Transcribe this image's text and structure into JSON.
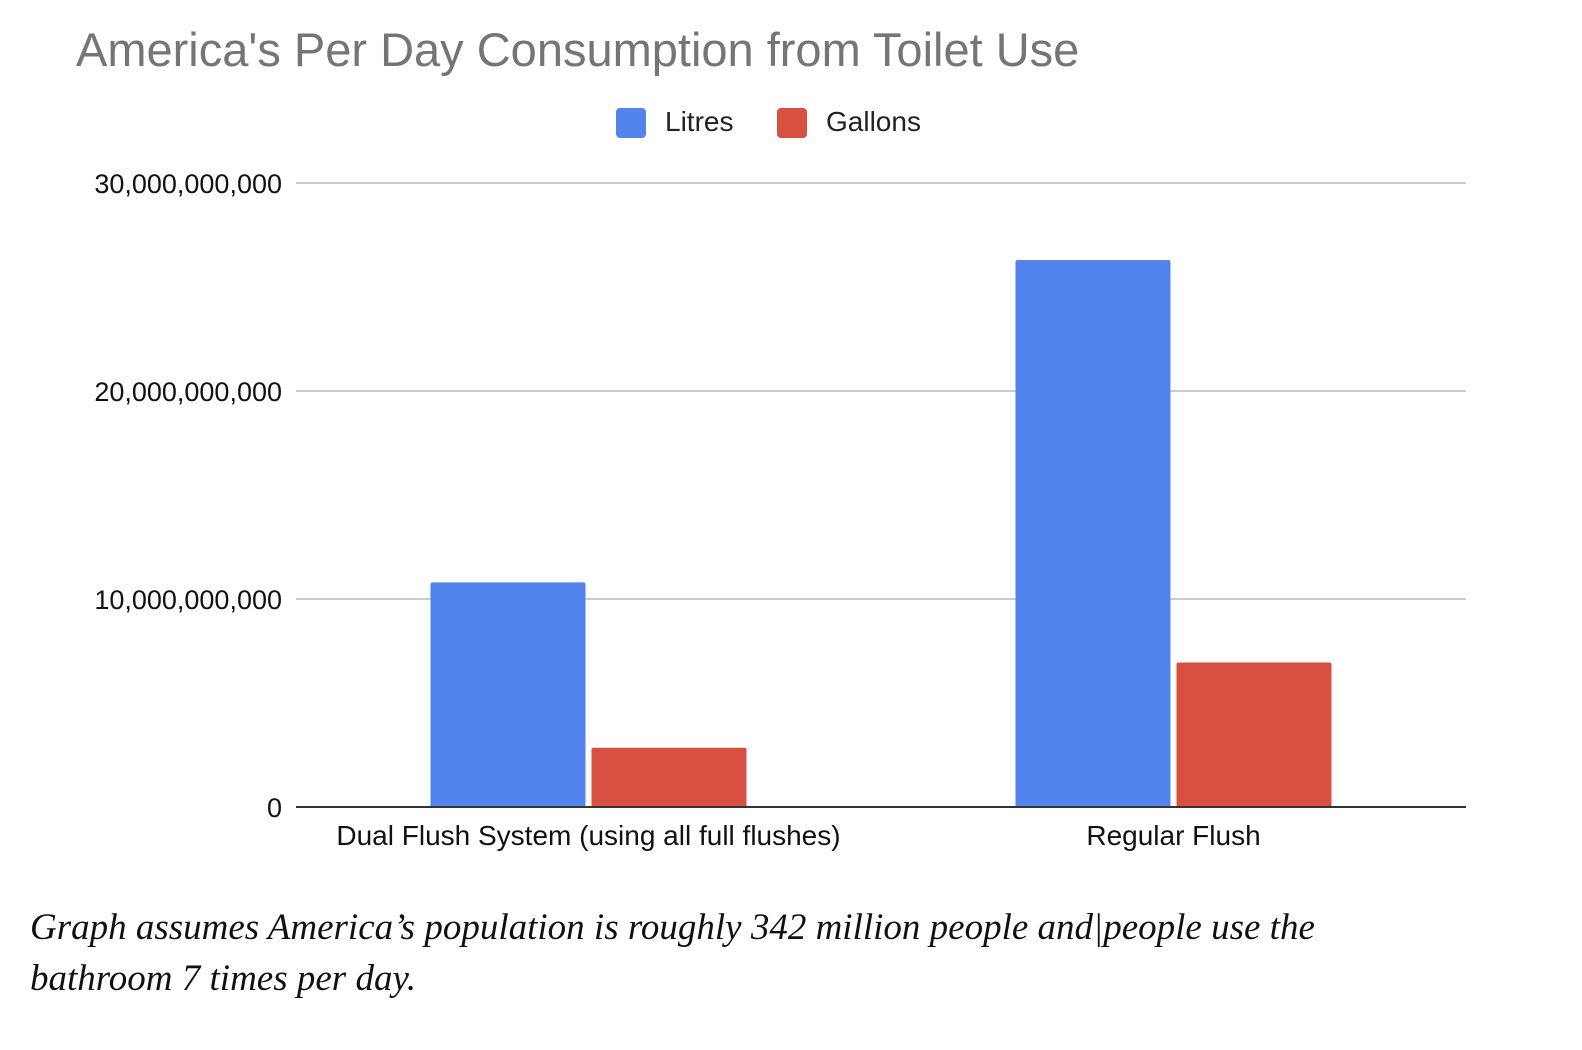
{
  "chart_data": {
    "type": "bar",
    "title": "America's Per Day Consumption from Toilet Use",
    "categories": [
      "Dual Flush System (using all full flushes)",
      "Regular Flush"
    ],
    "series": [
      {
        "name": "Litres",
        "color": "#5383EC",
        "values": [
          10800000000,
          26300000000
        ]
      },
      {
        "name": "Gallons",
        "color": "#D85140",
        "values": [
          2850000000,
          6950000000
        ]
      }
    ],
    "y_ticks": [
      0,
      10000000000,
      20000000000,
      30000000000
    ],
    "y_tick_labels": [
      "0",
      "10,000,000,000",
      "20,000,000,000",
      "30,000,000,000"
    ],
    "ylim": [
      0,
      30000000000
    ],
    "xlabel": "",
    "ylabel": "",
    "legend_position": "top-center",
    "grid": true
  },
  "caption": {
    "line1": "Graph assumes America’s population is roughly 342 million people and|people use the",
    "line2": "bathroom 7 times per day."
  }
}
